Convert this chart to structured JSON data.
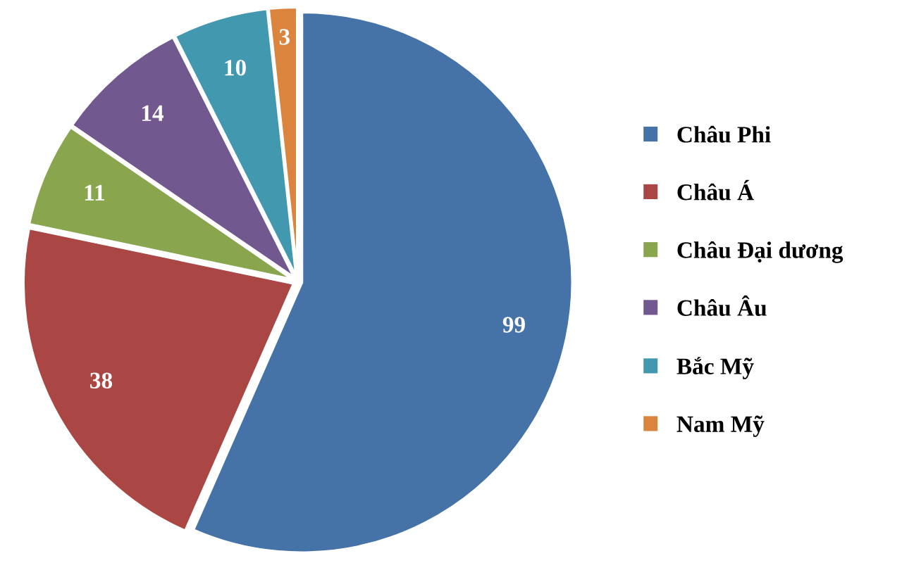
{
  "chart_data": {
    "type": "pie",
    "categories": [
      "Châu Phi",
      "Châu Á",
      "Châu Đại dương",
      "Châu Âu",
      "Bắc Mỹ",
      "Nam Mỹ"
    ],
    "values": [
      99,
      38,
      11,
      14,
      10,
      3
    ],
    "colors": [
      "#4572a7",
      "#aa4643",
      "#89a54e",
      "#71588f",
      "#4198af",
      "#db843d"
    ],
    "data_labels": true,
    "legend": "right"
  }
}
